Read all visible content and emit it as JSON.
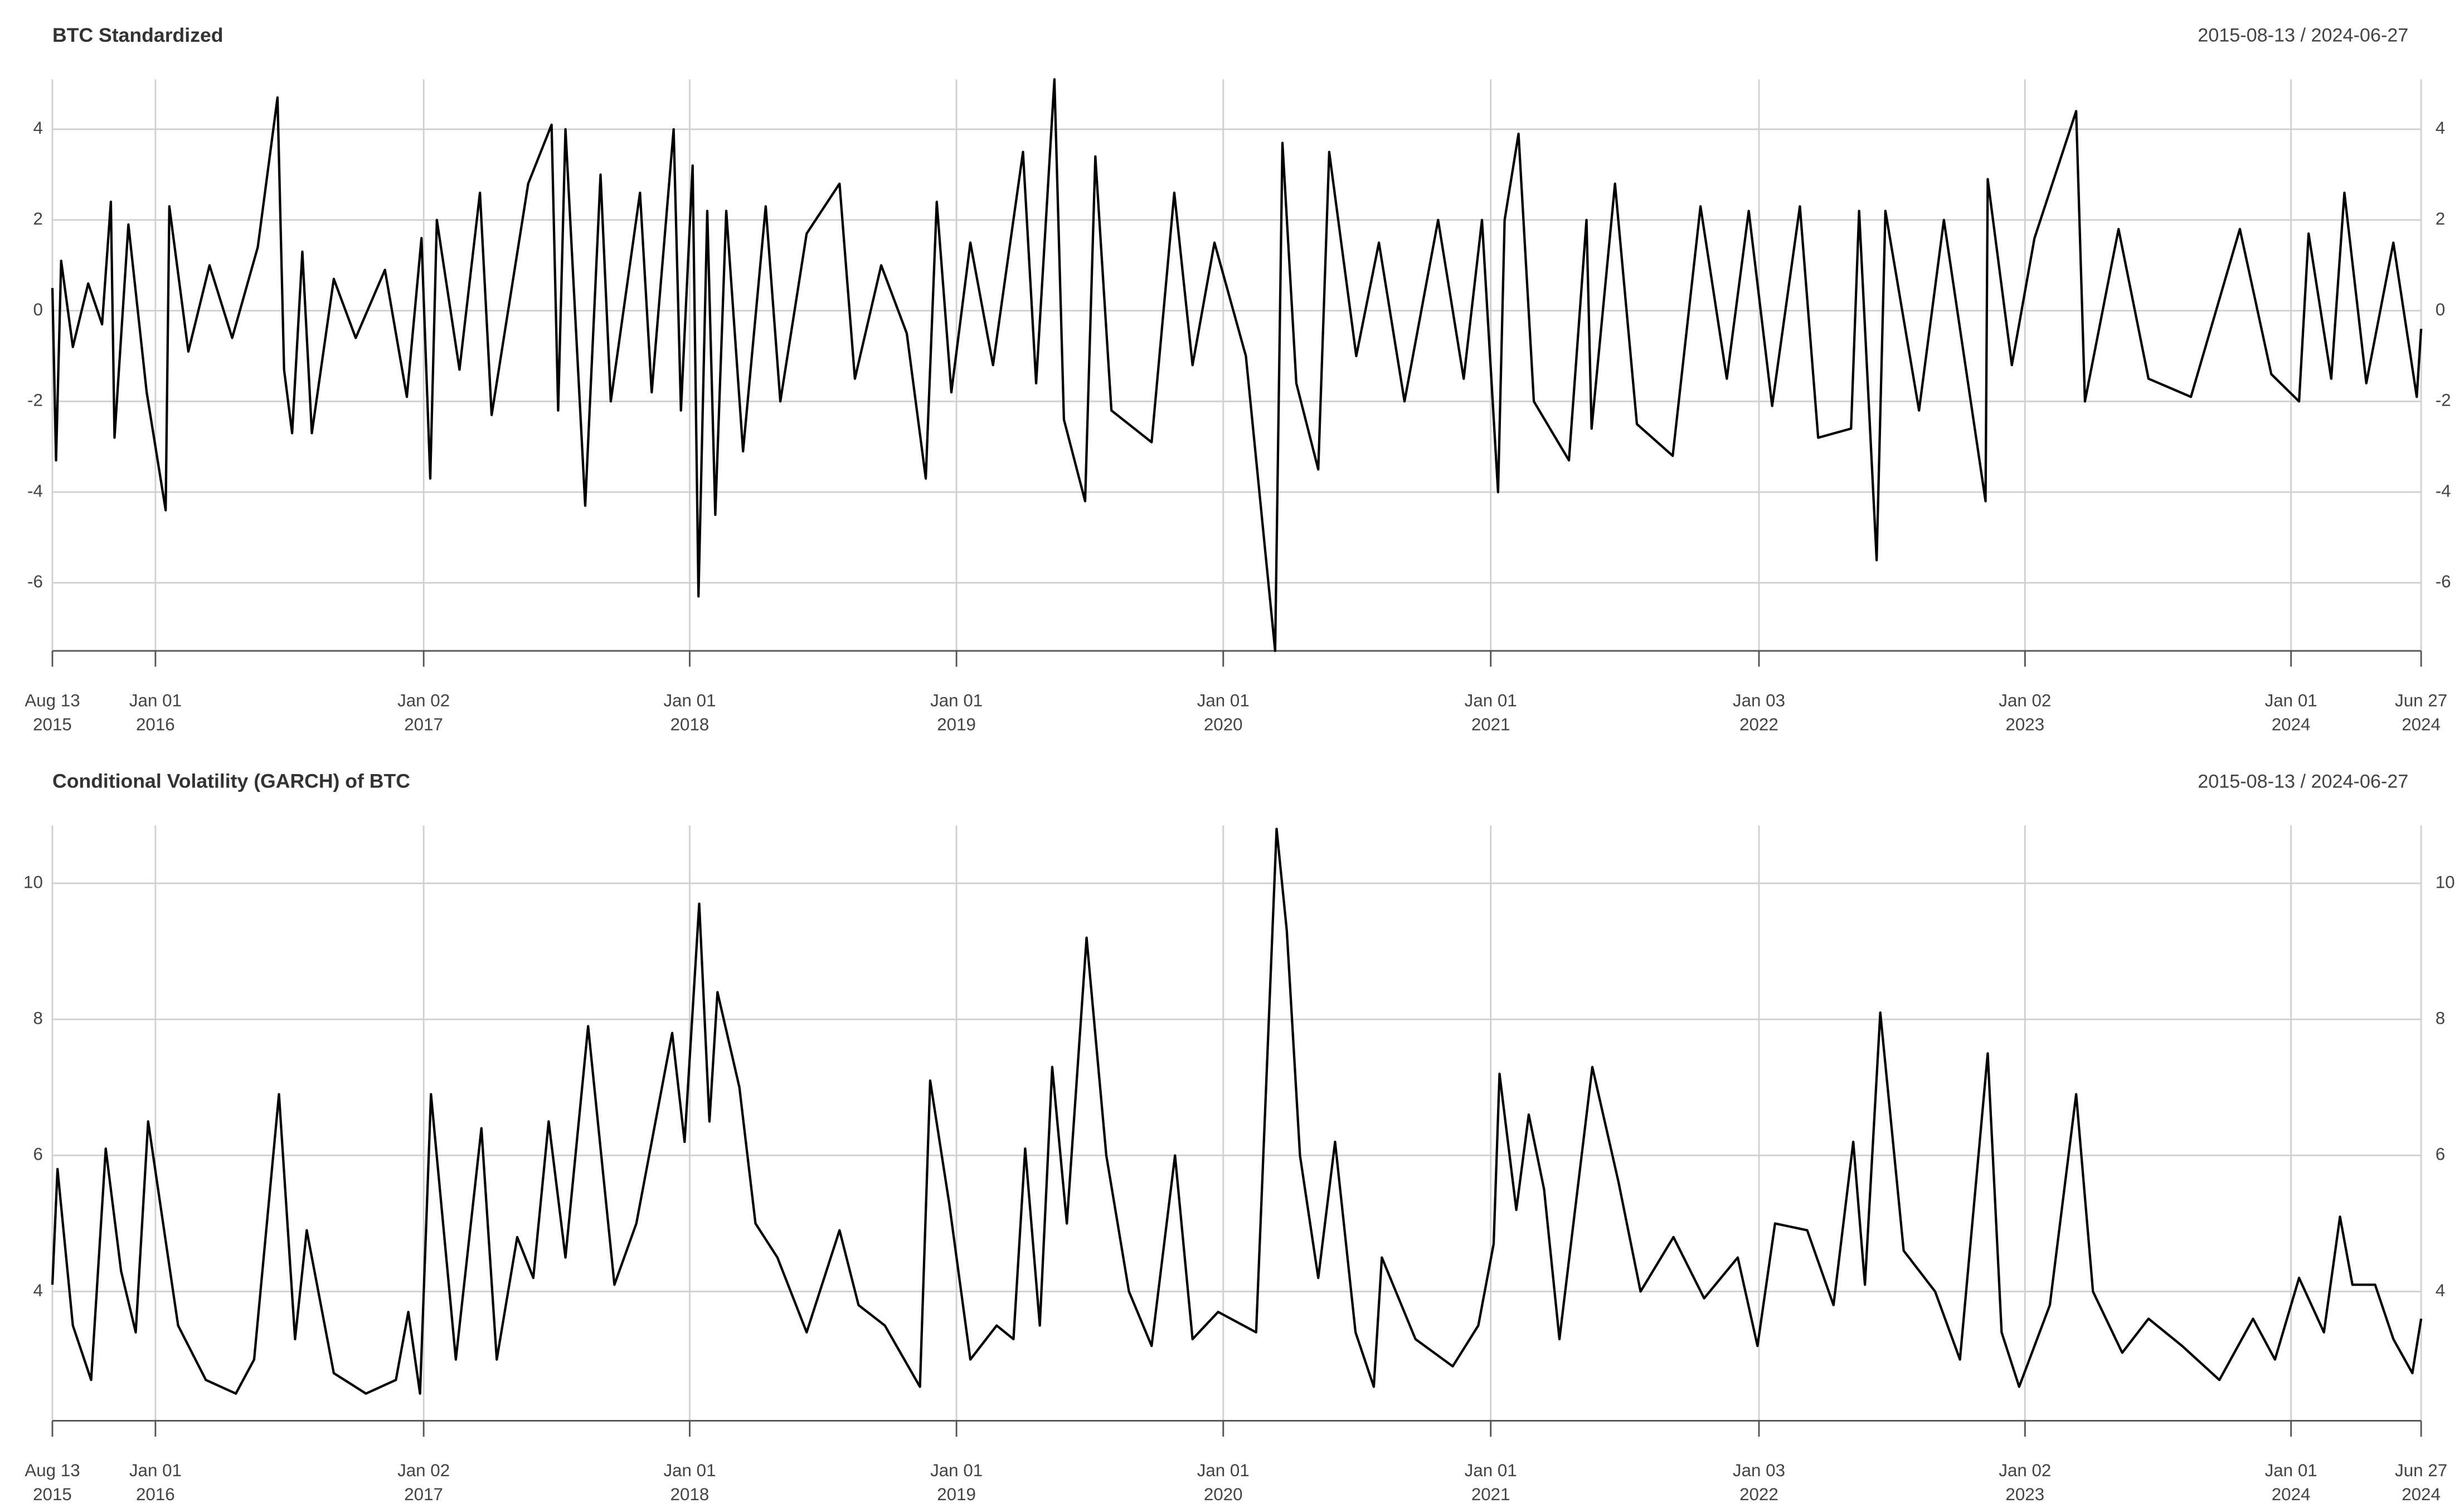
{
  "chart_data": [
    {
      "type": "line",
      "title": "BTC Standardized",
      "date_range": "2015-08-13 / 2024-06-27",
      "color": "#000000",
      "grid": true,
      "xlim": [
        "2015-08-13",
        "2024-06-27"
      ],
      "xticks": [
        {
          "value": "2015-08-13",
          "label": "Aug 13\n2015"
        },
        {
          "value": "2016-01-01",
          "label": "Jan 01\n2016"
        },
        {
          "value": "2017-01-02",
          "label": "Jan 02\n2017"
        },
        {
          "value": "2018-01-01",
          "label": "Jan 01\n2018"
        },
        {
          "value": "2019-01-01",
          "label": "Jan 01\n2019"
        },
        {
          "value": "2020-01-01",
          "label": "Jan 01\n2020"
        },
        {
          "value": "2021-01-01",
          "label": "Jan 01\n2021"
        },
        {
          "value": "2022-01-03",
          "label": "Jan 03\n2022"
        },
        {
          "value": "2023-01-02",
          "label": "Jan 02\n2023"
        },
        {
          "value": "2024-01-01",
          "label": "Jan 01\n2024"
        },
        {
          "value": "2024-06-27",
          "label": "Jun 27\n2024"
        }
      ],
      "ylim": [
        -7.5,
        5.1
      ],
      "yticks": [
        -6,
        -4,
        -2,
        0,
        2,
        4
      ],
      "x": [
        "2015-08-13",
        "2015-08-18",
        "2015-08-25",
        "2015-09-10",
        "2015-10-01",
        "2015-10-20",
        "2015-11-01",
        "2015-11-06",
        "2015-11-25",
        "2015-12-20",
        "2016-01-15",
        "2016-01-20",
        "2016-02-15",
        "2016-03-15",
        "2016-04-15",
        "2016-05-20",
        "2016-06-16",
        "2016-06-25",
        "2016-07-06",
        "2016-07-20",
        "2016-08-02",
        "2016-09-01",
        "2016-10-01",
        "2016-11-10",
        "2016-12-10",
        "2016-12-30",
        "2017-01-11",
        "2017-01-20",
        "2017-02-20",
        "2017-03-20",
        "2017-04-05",
        "2017-05-25",
        "2017-06-26",
        "2017-07-05",
        "2017-07-15",
        "2017-08-11",
        "2017-09-01",
        "2017-09-15",
        "2017-10-25",
        "2017-11-10",
        "2017-12-10",
        "2017-12-20",
        "2018-01-05",
        "2018-01-13",
        "2018-01-25",
        "2018-02-05",
        "2018-02-20",
        "2018-03-15",
        "2018-04-15",
        "2018-05-05",
        "2018-06-10",
        "2018-07-25",
        "2018-08-15",
        "2018-09-20",
        "2018-10-25",
        "2018-11-20",
        "2018-12-05",
        "2018-12-25",
        "2019-01-20",
        "2019-02-20",
        "2019-04-02",
        "2019-04-20",
        "2019-05-15",
        "2019-05-28",
        "2019-06-26",
        "2019-07-10",
        "2019-08-01",
        "2019-09-25",
        "2019-10-26",
        "2019-11-20",
        "2019-12-20",
        "2020-02-01",
        "2020-03-12",
        "2020-03-22",
        "2020-04-10",
        "2020-05-10",
        "2020-05-25",
        "2020-07-01",
        "2020-08-01",
        "2020-09-05",
        "2020-10-21",
        "2020-11-25",
        "2020-12-20",
        "2021-01-11",
        "2021-01-20",
        "2021-02-08",
        "2021-03-01",
        "2021-04-18",
        "2021-05-12",
        "2021-05-19",
        "2021-06-20",
        "2021-07-20",
        "2021-09-07",
        "2021-10-15",
        "2021-11-20",
        "2021-12-20",
        "2022-01-21",
        "2022-02-28",
        "2022-03-25",
        "2022-05-09",
        "2022-05-20",
        "2022-06-13",
        "2022-06-25",
        "2022-08-10",
        "2022-09-13",
        "2022-11-09",
        "2022-11-12",
        "2022-12-15",
        "2023-01-15",
        "2023-03-13",
        "2023-03-25",
        "2023-05-10",
        "2023-06-20",
        "2023-08-17",
        "2023-10-23",
        "2023-12-05",
        "2024-01-12",
        "2024-01-25",
        "2024-02-25",
        "2024-03-14",
        "2024-04-13",
        "2024-05-20",
        "2024-06-21",
        "2024-06-27"
      ],
      "values": [
        0.5,
        -3.3,
        1.1,
        -0.8,
        0.6,
        -0.3,
        2.4,
        -2.8,
        1.9,
        -1.8,
        -4.4,
        2.3,
        -0.9,
        1.0,
        -0.6,
        1.4,
        4.7,
        -1.3,
        -2.7,
        1.3,
        -2.7,
        0.7,
        -0.6,
        0.9,
        -1.9,
        1.6,
        -3.7,
        2.0,
        -1.3,
        2.6,
        -2.3,
        2.8,
        4.1,
        -2.2,
        4.0,
        -4.3,
        3.0,
        -2.0,
        2.6,
        -1.8,
        4.0,
        -2.2,
        3.2,
        -6.3,
        2.2,
        -4.5,
        2.2,
        -3.1,
        2.3,
        -2.0,
        1.7,
        2.8,
        -1.5,
        1.0,
        -0.5,
        -3.7,
        2.4,
        -1.8,
        1.5,
        -1.2,
        3.5,
        -1.6,
        5.1,
        -2.4,
        -4.2,
        3.4,
        -2.2,
        -2.9,
        2.6,
        -1.2,
        1.5,
        -1.0,
        -7.5,
        3.7,
        -1.6,
        -3.5,
        3.5,
        -1.0,
        1.5,
        -2.0,
        2.0,
        -1.5,
        2.0,
        -4.0,
        2.0,
        3.9,
        -2.0,
        -3.3,
        2.0,
        -2.6,
        2.8,
        -2.5,
        -3.2,
        2.3,
        -1.5,
        2.2,
        -2.1,
        2.3,
        -2.8,
        -2.6,
        2.2,
        -5.5,
        2.2,
        -2.2,
        2.0,
        -4.2,
        2.9,
        -1.2,
        1.6,
        4.4,
        -2.0,
        1.8,
        -1.5,
        -1.9,
        1.8,
        -1.4,
        -2.0,
        1.7,
        -1.5,
        2.6,
        -1.6,
        1.5,
        -1.9,
        -0.4
      ]
    },
    {
      "type": "line",
      "title": "Conditional Volatility (GARCH) of BTC",
      "date_range": "2015-08-13 / 2024-06-27",
      "color": "#000000",
      "grid": true,
      "xlim": [
        "2015-08-13",
        "2024-06-27"
      ],
      "xticks": [
        {
          "value": "2015-08-13",
          "label": "Aug 13\n2015"
        },
        {
          "value": "2016-01-01",
          "label": "Jan 01\n2016"
        },
        {
          "value": "2017-01-02",
          "label": "Jan 02\n2017"
        },
        {
          "value": "2018-01-01",
          "label": "Jan 01\n2018"
        },
        {
          "value": "2019-01-01",
          "label": "Jan 01\n2019"
        },
        {
          "value": "2020-01-01",
          "label": "Jan 01\n2020"
        },
        {
          "value": "2021-01-01",
          "label": "Jan 01\n2021"
        },
        {
          "value": "2022-01-03",
          "label": "Jan 03\n2022"
        },
        {
          "value": "2023-01-02",
          "label": "Jan 02\n2023"
        },
        {
          "value": "2024-01-01",
          "label": "Jan 01\n2024"
        },
        {
          "value": "2024-06-27",
          "label": "Jun 27\n2024"
        }
      ],
      "ylim": [
        2.1,
        10.85
      ],
      "yticks": [
        4,
        6,
        8,
        10
      ],
      "x": [
        "2015-08-13",
        "2015-08-20",
        "2015-09-10",
        "2015-10-05",
        "2015-10-25",
        "2015-11-15",
        "2015-12-05",
        "2015-12-22",
        "2016-02-01",
        "2016-03-10",
        "2016-04-20",
        "2016-05-15",
        "2016-06-18",
        "2016-07-10",
        "2016-07-26",
        "2016-09-01",
        "2016-10-15",
        "2016-11-25",
        "2016-12-12",
        "2016-12-28",
        "2017-01-12",
        "2017-02-15",
        "2017-03-22",
        "2017-04-12",
        "2017-05-10",
        "2017-06-01",
        "2017-06-22",
        "2017-07-15",
        "2017-08-15",
        "2017-09-20",
        "2017-10-20",
        "2017-12-08",
        "2017-12-25",
        "2018-01-14",
        "2018-01-28",
        "2018-02-08",
        "2018-03-10",
        "2018-04-01",
        "2018-05-01",
        "2018-06-10",
        "2018-07-25",
        "2018-08-20",
        "2018-09-25",
        "2018-11-12",
        "2018-11-26",
        "2018-12-22",
        "2019-01-20",
        "2019-02-25",
        "2019-03-20",
        "2019-04-05",
        "2019-04-25",
        "2019-05-12",
        "2019-06-01",
        "2019-06-28",
        "2019-07-25",
        "2019-08-25",
        "2019-09-25",
        "2019-10-27",
        "2019-11-20",
        "2019-12-25",
        "2020-02-15",
        "2020-03-14",
        "2020-03-28",
        "2020-04-15",
        "2020-05-10",
        "2020-06-02",
        "2020-06-30",
        "2020-07-25",
        "2020-08-05",
        "2020-09-20",
        "2020-11-10",
        "2020-12-15",
        "2021-01-05",
        "2021-01-13",
        "2021-02-05",
        "2021-02-22",
        "2021-03-15",
        "2021-04-05",
        "2021-05-20",
        "2021-06-25",
        "2021-07-25",
        "2021-09-08",
        "2021-10-20",
        "2021-12-05",
        "2022-01-01",
        "2022-01-25",
        "2022-03-10",
        "2022-04-15",
        "2022-05-12",
        "2022-05-28",
        "2022-06-18",
        "2022-07-20",
        "2022-09-01",
        "2022-10-05",
        "2022-11-12",
        "2022-12-01",
        "2022-12-25",
        "2023-02-05",
        "2023-03-13",
        "2023-04-05",
        "2023-05-15",
        "2023-06-20",
        "2023-08-05",
        "2023-09-25",
        "2023-11-10",
        "2023-12-10",
        "2024-01-12",
        "2024-02-15",
        "2024-03-08",
        "2024-03-25",
        "2024-04-25",
        "2024-05-20",
        "2024-06-15",
        "2024-06-27"
      ],
      "values": [
        4.1,
        5.8,
        3.5,
        2.7,
        6.1,
        4.3,
        3.4,
        6.5,
        3.5,
        2.7,
        2.5,
        3.0,
        6.9,
        3.3,
        4.9,
        2.8,
        2.5,
        2.7,
        3.7,
        2.5,
        6.9,
        3.0,
        6.4,
        3.0,
        4.8,
        4.2,
        6.5,
        4.5,
        7.9,
        4.1,
        5.0,
        7.8,
        6.2,
        9.7,
        6.5,
        8.4,
        7.0,
        5.0,
        4.5,
        3.4,
        4.9,
        3.8,
        3.5,
        2.6,
        7.1,
        5.3,
        3.0,
        3.5,
        3.3,
        6.1,
        3.5,
        7.3,
        5.0,
        9.2,
        6.0,
        4.0,
        3.2,
        6.0,
        3.3,
        3.7,
        3.4,
        10.8,
        9.3,
        6.0,
        4.2,
        6.2,
        3.4,
        2.6,
        4.5,
        3.3,
        2.9,
        3.5,
        4.7,
        7.2,
        5.2,
        6.6,
        5.5,
        3.3,
        7.3,
        5.6,
        4.0,
        4.8,
        3.9,
        4.5,
        3.2,
        5.0,
        4.9,
        3.8,
        6.2,
        4.1,
        8.1,
        4.6,
        4.0,
        3.0,
        7.5,
        3.4,
        2.6,
        3.8,
        6.9,
        4.0,
        3.1,
        3.6,
        3.2,
        2.7,
        3.6,
        3.0,
        4.2,
        3.4,
        5.1,
        4.1,
        4.1,
        3.3,
        2.8,
        3.6
      ]
    }
  ]
}
